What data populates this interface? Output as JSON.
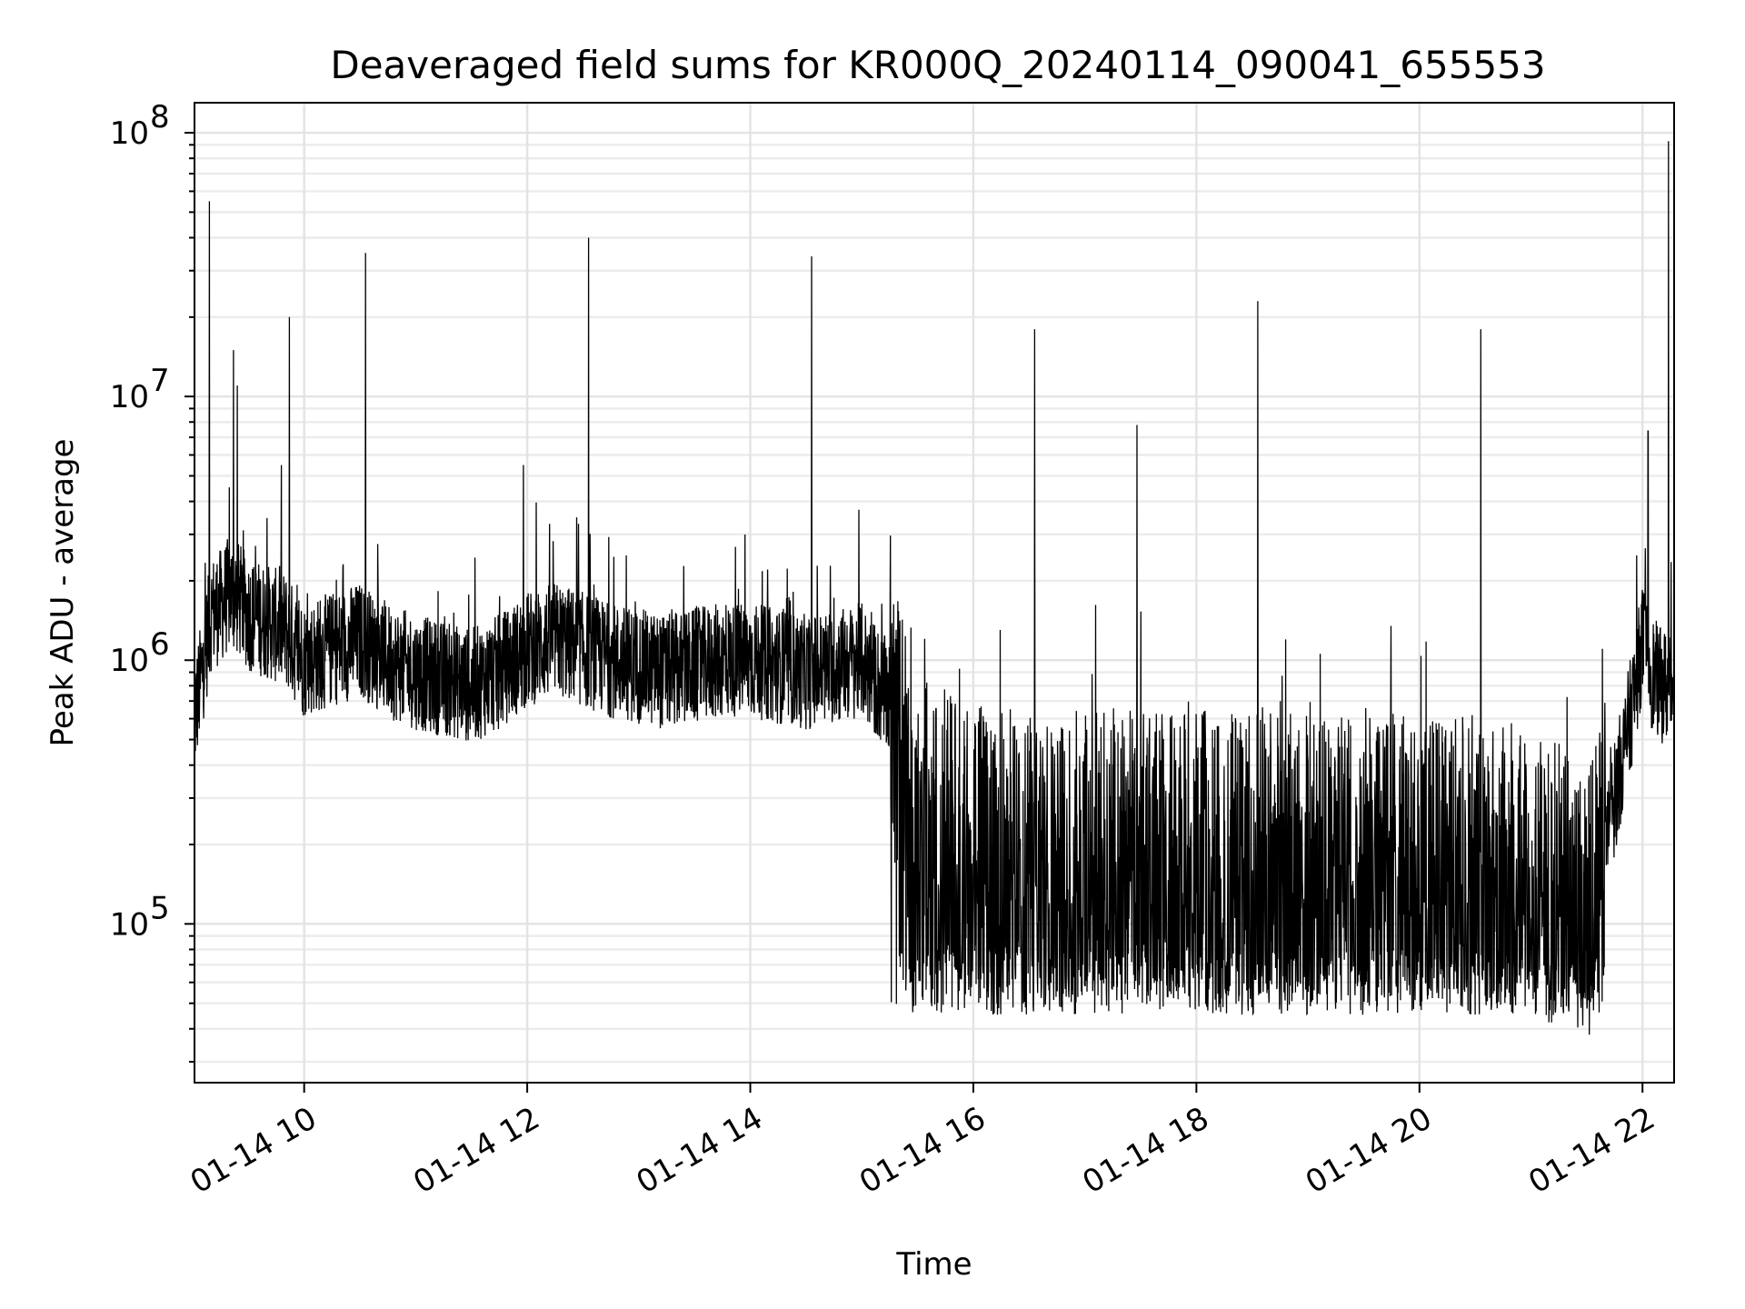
{
  "chart_data": {
    "type": "line",
    "title": "Deaveraged field sums for KR000Q_20240114_090041_655553",
    "xlabel": "Time",
    "ylabel": "Peak ADU - average",
    "yscale": "log",
    "ylim": [
      25000,
      130000000
    ],
    "xlim": [
      "2024-01-14 09:01",
      "2024-01-14 22:17"
    ],
    "x_ticks": [
      {
        "value": "2024-01-14 10:00",
        "label": "01-14 10"
      },
      {
        "value": "2024-01-14 12:00",
        "label": "01-14 12"
      },
      {
        "value": "2024-01-14 14:00",
        "label": "01-14 14"
      },
      {
        "value": "2024-01-14 16:00",
        "label": "01-14 16"
      },
      {
        "value": "2024-01-14 18:00",
        "label": "01-14 18"
      },
      {
        "value": "2024-01-14 20:00",
        "label": "01-14 20"
      },
      {
        "value": "2024-01-14 22:00",
        "label": "01-14 22"
      }
    ],
    "y_ticks": [
      {
        "value": 100000,
        "label": "10",
        "exp": "5"
      },
      {
        "value": 1000000,
        "label": "10",
        "exp": "6"
      },
      {
        "value": 10000000,
        "label": "10",
        "exp": "7"
      },
      {
        "value": 100000000,
        "label": "10",
        "exp": "8"
      }
    ],
    "grid": true,
    "line_color": "#000000",
    "series": [
      {
        "x": [
          "2024-01-14 09:01",
          "2024-01-14 09:05",
          "2024-01-14 09:10",
          "2024-01-14 09:15",
          "2024-01-14 09:20",
          "2024-01-14 09:25",
          "2024-01-14 09:30",
          "2024-01-14 09:40",
          "2024-01-14 09:50",
          "2024-01-14 10:00",
          "2024-01-14 10:15",
          "2024-01-14 10:30",
          "2024-01-14 10:45",
          "2024-01-14 11:00",
          "2024-01-14 11:15",
          "2024-01-14 11:30",
          "2024-01-14 11:45",
          "2024-01-14 12:00",
          "2024-01-14 12:15",
          "2024-01-14 12:30",
          "2024-01-14 12:45",
          "2024-01-14 13:00",
          "2024-01-14 13:15",
          "2024-01-14 13:30",
          "2024-01-14 13:45",
          "2024-01-14 14:00",
          "2024-01-14 14:15",
          "2024-01-14 14:30",
          "2024-01-14 14:45",
          "2024-01-14 15:00",
          "2024-01-14 15:15",
          "2024-01-14 15:30",
          "2024-01-14 15:45",
          "2024-01-14 16:00",
          "2024-01-14 16:30",
          "2024-01-14 17:00",
          "2024-01-14 17:30",
          "2024-01-14 18:00",
          "2024-01-14 18:30",
          "2024-01-14 19:00",
          "2024-01-14 19:30",
          "2024-01-14 20:00",
          "2024-01-14 20:30",
          "2024-01-14 21:00",
          "2024-01-14 21:30",
          "2024-01-14 21:45",
          "2024-01-14 21:55",
          "2024-01-14 22:00",
          "2024-01-14 22:05",
          "2024-01-14 22:10",
          "2024-01-14 22:17"
        ],
        "y": [
          600000,
          900000,
          1500000,
          1600000,
          1800000,
          1700000,
          1500000,
          1400000,
          1300000,
          1000000,
          1100000,
          1200000,
          1000000,
          900000,
          850000,
          800000,
          900000,
          1100000,
          1200000,
          1100000,
          1000000,
          950000,
          900000,
          950000,
          1000000,
          1000000,
          950000,
          900000,
          950000,
          1000000,
          700000,
          250000,
          220000,
          200000,
          200000,
          180000,
          190000,
          180000,
          190000,
          180000,
          190000,
          180000,
          170000,
          160000,
          120000,
          300000,
          700000,
          1200000,
          900000,
          800000,
          800000
        ],
        "spikes": [
          {
            "x": "2024-01-14 09:09",
            "y": 55000000
          },
          {
            "x": "2024-01-14 09:22",
            "y": 15000000
          },
          {
            "x": "2024-01-14 09:24",
            "y": 11000000
          },
          {
            "x": "2024-01-14 09:52",
            "y": 20000000
          },
          {
            "x": "2024-01-14 10:33",
            "y": 35000000
          },
          {
            "x": "2024-01-14 11:58",
            "y": 5500000
          },
          {
            "x": "2024-01-14 12:33",
            "y": 40000000
          },
          {
            "x": "2024-01-14 14:33",
            "y": 34000000
          },
          {
            "x": "2024-01-14 16:33",
            "y": 18000000
          },
          {
            "x": "2024-01-14 17:28",
            "y": 7800000
          },
          {
            "x": "2024-01-14 18:33",
            "y": 23000000
          },
          {
            "x": "2024-01-14 20:33",
            "y": 18000000
          },
          {
            "x": "2024-01-14 22:03",
            "y": 7400000
          },
          {
            "x": "2024-01-14 22:14",
            "y": 93000000
          }
        ]
      }
    ]
  }
}
